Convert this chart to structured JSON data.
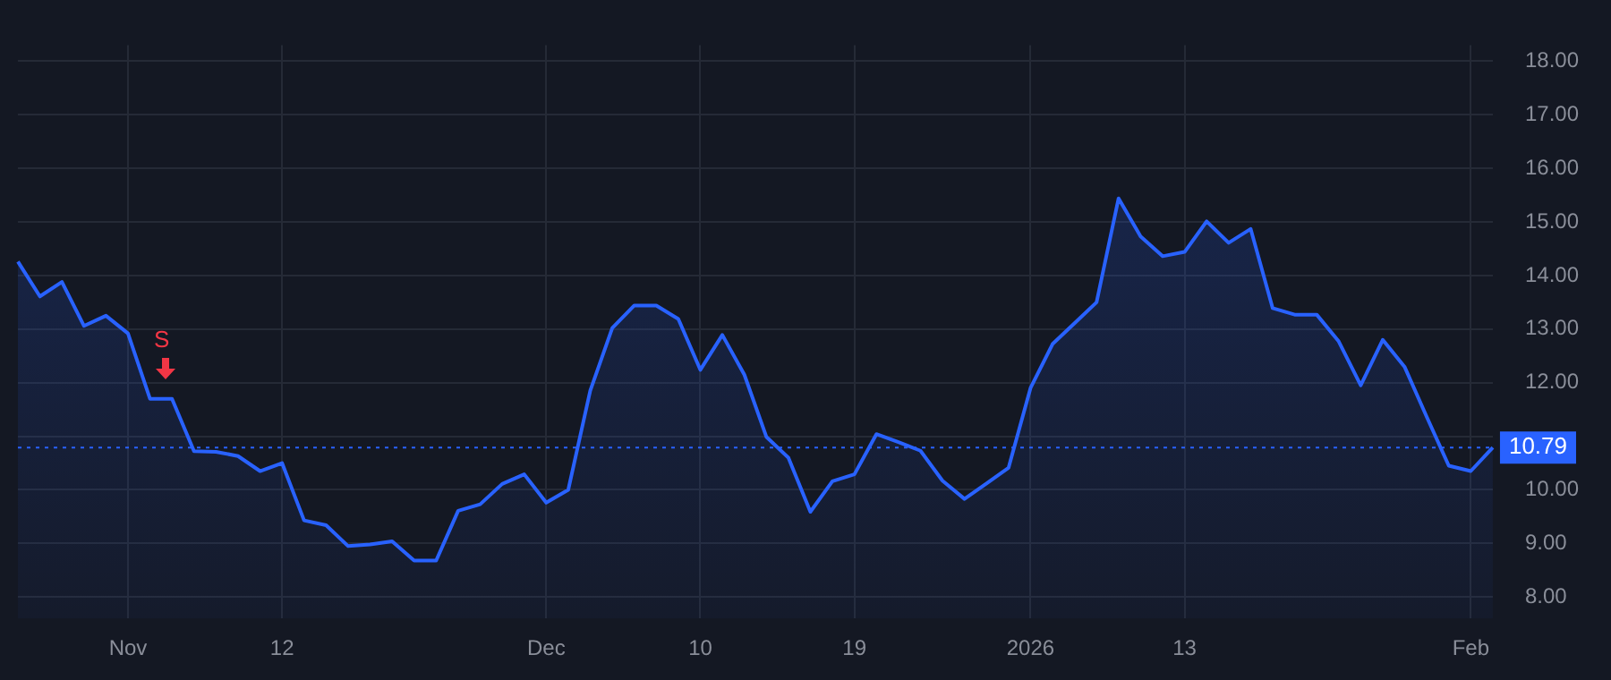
{
  "chart_data": {
    "type": "area",
    "categories": [
      null,
      null,
      null,
      null,
      null,
      "Nov",
      null,
      null,
      null,
      null,
      null,
      null,
      "12",
      null,
      null,
      null,
      null,
      null,
      null,
      null,
      null,
      null,
      null,
      null,
      "Dec",
      null,
      null,
      null,
      null,
      null,
      null,
      "10",
      null,
      null,
      null,
      null,
      null,
      null,
      "19",
      null,
      null,
      null,
      null,
      null,
      null,
      null,
      "2026",
      null,
      null,
      null,
      null,
      null,
      null,
      "13",
      null,
      null,
      null,
      null,
      null,
      null,
      null,
      null,
      null,
      null,
      null,
      null,
      "Feb",
      null
    ],
    "series": [
      {
        "color": "#2962ff",
        "values": [
          14.26,
          13.61,
          13.88,
          13.06,
          13.25,
          12.92,
          11.7,
          11.7,
          10.72,
          10.71,
          10.63,
          10.35,
          10.5,
          9.43,
          9.34,
          8.95,
          8.98,
          9.04,
          8.68,
          8.68,
          9.61,
          9.73,
          10.11,
          10.29,
          9.76,
          10.0,
          11.85,
          13.02,
          13.44,
          13.44,
          13.19,
          12.24,
          12.89,
          12.15,
          10.99,
          10.6,
          9.59,
          10.16,
          10.29,
          11.04,
          10.89,
          10.73,
          10.17,
          9.83,
          10.12,
          10.41,
          11.9,
          12.72,
          13.11,
          13.5,
          15.44,
          14.73,
          14.36,
          14.44,
          15.01,
          14.61,
          14.87,
          13.39,
          13.27,
          13.27,
          12.77,
          11.95,
          12.8,
          12.29,
          11.36,
          10.45,
          10.35,
          10.79
        ]
      }
    ],
    "ylim": [
      7.6,
      18.3
    ],
    "yticks": [
      {
        "value": 8,
        "label": "8.00"
      },
      {
        "value": 9,
        "label": "9.00"
      },
      {
        "value": 10,
        "label": "10.00"
      },
      {
        "value": 11,
        "label": null
      },
      {
        "value": 12,
        "label": "12.00"
      },
      {
        "value": 13,
        "label": "13.00"
      },
      {
        "value": 14,
        "label": "14.00"
      },
      {
        "value": 15,
        "label": "15.00"
      },
      {
        "value": 16,
        "label": "16.00"
      },
      {
        "value": 17,
        "label": "17.00"
      },
      {
        "value": 18,
        "label": "18.00"
      }
    ],
    "ref_lines": [
      {
        "axis": "y",
        "value": 10.79,
        "label": "10.79",
        "color": "#2962ff",
        "line_style": "dotted"
      }
    ],
    "annotations": [
      "S"
    ],
    "grid": true,
    "legend": false,
    "marker": "none",
    "line_style": "solid"
  }
}
